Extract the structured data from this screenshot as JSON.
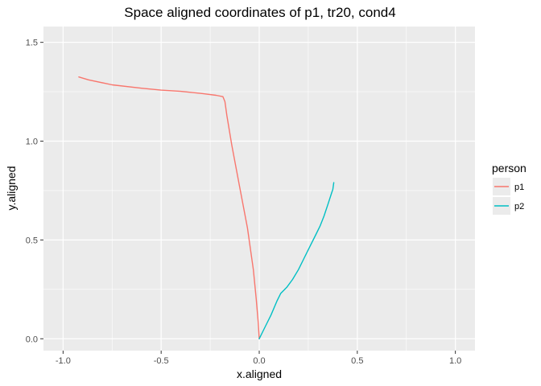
{
  "chart_data": {
    "type": "line",
    "title": "Space aligned coordinates of p1, tr20, cond4",
    "xlabel": "x.aligned",
    "ylabel": "y.aligned",
    "xlim": [
      -1.1,
      1.1
    ],
    "ylim": [
      -0.06,
      1.58
    ],
    "x_ticks": [
      -1.0,
      -0.5,
      0.0,
      0.5,
      1.0
    ],
    "x_tick_labels": [
      "-1.0",
      "-0.5",
      "0.0",
      "0.5",
      "1.0"
    ],
    "y_ticks": [
      0.0,
      0.5,
      1.0,
      1.5
    ],
    "y_tick_labels": [
      "0.0",
      "0.5",
      "1.0",
      "1.5"
    ],
    "grid": true,
    "panel_background": "#ebebeb",
    "grid_color": "#ffffff",
    "legend": {
      "title": "person",
      "position": "right"
    },
    "series": [
      {
        "name": "p1",
        "color": "#f8766d",
        "x": [
          -0.92,
          -0.87,
          -0.75,
          -0.6,
          -0.5,
          -0.4,
          -0.3,
          -0.22,
          -0.185,
          -0.175,
          -0.165,
          -0.14,
          -0.1,
          -0.06,
          -0.03,
          -0.015,
          -0.005,
          0.0
        ],
        "y": [
          1.325,
          1.31,
          1.285,
          1.268,
          1.258,
          1.252,
          1.242,
          1.232,
          1.225,
          1.2,
          1.13,
          0.98,
          0.77,
          0.56,
          0.35,
          0.2,
          0.08,
          0.0
        ]
      },
      {
        "name": "p2",
        "color": "#00bfc4",
        "x": [
          0.0,
          0.03,
          0.06,
          0.09,
          0.11,
          0.14,
          0.17,
          0.2,
          0.23,
          0.26,
          0.29,
          0.31,
          0.33,
          0.35,
          0.37,
          0.375,
          0.38
        ],
        "y": [
          0.0,
          0.06,
          0.12,
          0.19,
          0.23,
          0.26,
          0.3,
          0.35,
          0.41,
          0.47,
          0.53,
          0.57,
          0.62,
          0.68,
          0.74,
          0.755,
          0.79
        ]
      }
    ]
  }
}
